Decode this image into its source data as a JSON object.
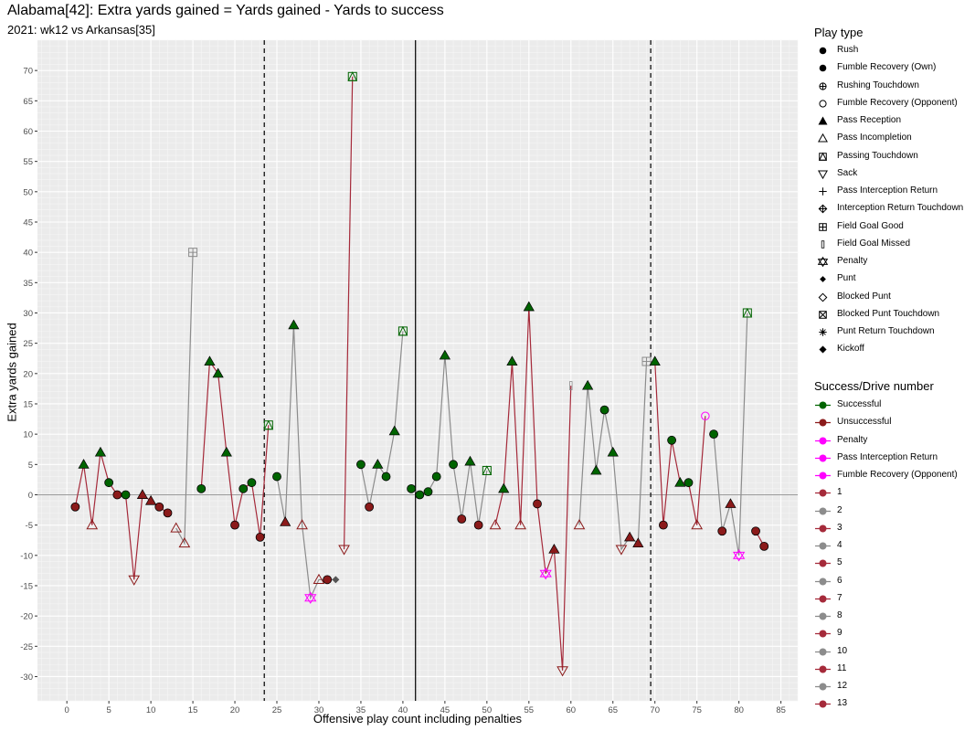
{
  "chart_data": {
    "type": "scatter",
    "title": "Alabama[42]: Extra yards gained = Yards gained - Yards to success",
    "subtitle": "2021: wk12 vs Arkansas[35]",
    "xlabel": "Offensive play count including penalties",
    "ylabel": "Extra yards gained",
    "xlim": [
      -3.5,
      87
    ],
    "ylim": [
      -34,
      75
    ],
    "x_ticks": [
      0,
      5,
      10,
      15,
      20,
      25,
      30,
      35,
      40,
      45,
      50,
      55,
      60,
      65,
      70,
      75,
      80,
      85
    ],
    "y_ticks": [
      -30,
      -25,
      -20,
      -15,
      -10,
      -5,
      0,
      5,
      10,
      15,
      20,
      25,
      30,
      35,
      40,
      45,
      50,
      55,
      60,
      65,
      70
    ],
    "grid": true,
    "vertical_lines": [
      {
        "x": 23.5,
        "style": "dashed"
      },
      {
        "x": 41.5,
        "style": "solid"
      },
      {
        "x": 69.5,
        "style": "dashed"
      }
    ],
    "colors": {
      "successful": "#006400",
      "unsuccessful": "#8b1a1a",
      "penalty": "#ff00ff",
      "drive_odd": "#a52a3a",
      "drive_even": "#8c8c8c"
    },
    "legend": {
      "placement": "right",
      "play_type_title": "Play type",
      "play_types": [
        {
          "label": "Rush",
          "shape": "circle-filled"
        },
        {
          "label": "Fumble Recovery (Own)",
          "shape": "circle-filled"
        },
        {
          "label": "Rushing Touchdown",
          "shape": "circle-plus"
        },
        {
          "label": "Fumble Recovery (Opponent)",
          "shape": "circle-open"
        },
        {
          "label": "Pass Reception",
          "shape": "triangle-filled"
        },
        {
          "label": "Pass Incompletion",
          "shape": "triangle-open"
        },
        {
          "label": "Passing Touchdown",
          "shape": "square-triangle"
        },
        {
          "label": "Sack",
          "shape": "triangle-down-open"
        },
        {
          "label": "Pass Interception Return",
          "shape": "plus"
        },
        {
          "label": "Interception Return Touchdown",
          "shape": "diamond-plus"
        },
        {
          "label": "Field Goal Good",
          "shape": "square-plus"
        },
        {
          "label": "Field Goal Missed",
          "shape": "bar"
        },
        {
          "label": "Penalty",
          "shape": "star-of-david"
        },
        {
          "label": "Punt",
          "shape": "diamond-filled-small"
        },
        {
          "label": "Blocked Punt",
          "shape": "diamond-open"
        },
        {
          "label": "Blocked Punt Touchdown",
          "shape": "square-x"
        },
        {
          "label": "Punt Return Touchdown",
          "shape": "asterisk"
        },
        {
          "label": "Kickoff",
          "shape": "diamond-filled"
        }
      ],
      "success_title": "Success/Drive number",
      "success_items": [
        {
          "label": "Successful",
          "color": "#006400"
        },
        {
          "label": "Unsuccessful",
          "color": "#8b1a1a"
        },
        {
          "label": "Penalty",
          "color": "#ff00ff"
        },
        {
          "label": "Pass Interception Return",
          "color": "#ff00ff"
        },
        {
          "label": "Fumble Recovery (Opponent)",
          "color": "#ff00ff"
        },
        {
          "label": "1",
          "color": "#a52a3a"
        },
        {
          "label": "2",
          "color": "#8c8c8c"
        },
        {
          "label": "3",
          "color": "#a52a3a"
        },
        {
          "label": "4",
          "color": "#8c8c8c"
        },
        {
          "label": "5",
          "color": "#a52a3a"
        },
        {
          "label": "6",
          "color": "#8c8c8c"
        },
        {
          "label": "7",
          "color": "#a52a3a"
        },
        {
          "label": "8",
          "color": "#8c8c8c"
        },
        {
          "label": "9",
          "color": "#a52a3a"
        },
        {
          "label": "10",
          "color": "#8c8c8c"
        },
        {
          "label": "11",
          "color": "#a52a3a"
        },
        {
          "label": "12",
          "color": "#8c8c8c"
        },
        {
          "label": "13",
          "color": "#a52a3a"
        }
      ]
    },
    "drives": [
      {
        "drive": 1,
        "color": "#a52a3a",
        "points": [
          [
            1,
            -2,
            "circle",
            "u"
          ],
          [
            2,
            5,
            "tri",
            "s"
          ],
          [
            3,
            -5,
            "tri-open",
            "u"
          ],
          [
            4,
            7,
            "tri",
            "s"
          ],
          [
            5,
            2,
            "circle",
            "s"
          ],
          [
            6,
            0,
            "circle",
            "u"
          ],
          [
            7,
            0,
            "circle",
            "s"
          ],
          [
            8,
            -14,
            "tri-down",
            "u"
          ],
          [
            9,
            0,
            "tri",
            "u"
          ],
          [
            10,
            -1,
            "tri",
            "u"
          ],
          [
            11,
            -2,
            "circle",
            "u"
          ],
          [
            12,
            -3,
            "circle",
            "u"
          ]
        ]
      },
      {
        "drive": 2,
        "color": "#8c8c8c",
        "points": [
          [
            13,
            -5.5,
            "tri-open",
            "u"
          ],
          [
            14,
            -8,
            "tri-open",
            "u"
          ],
          [
            15,
            40,
            "sq-plus",
            "fg"
          ]
        ]
      },
      {
        "drive": 3,
        "color": "#a52a3a",
        "points": [
          [
            16,
            1,
            "circle",
            "s"
          ],
          [
            17,
            22,
            "tri",
            "s"
          ],
          [
            18,
            20,
            "tri",
            "s"
          ],
          [
            19,
            7,
            "tri",
            "s"
          ],
          [
            20,
            -5,
            "circle",
            "u"
          ],
          [
            21,
            1,
            "circle",
            "s"
          ],
          [
            22,
            2,
            "circle",
            "s"
          ],
          [
            23,
            -7,
            "circle",
            "u"
          ],
          [
            24,
            11.5,
            "sq-tri",
            "s"
          ]
        ]
      },
      {
        "drive": 4,
        "color": "#8c8c8c",
        "points": [
          [
            25,
            3,
            "circle",
            "s"
          ],
          [
            26,
            -4.5,
            "tri",
            "u"
          ],
          [
            27,
            28,
            "tri",
            "s"
          ],
          [
            28,
            -5,
            "tri-open",
            "u"
          ],
          [
            29,
            -17,
            "penalty",
            "p"
          ],
          [
            30,
            -14,
            "tri-open",
            "u"
          ],
          [
            31,
            -14,
            "circle",
            "u"
          ],
          [
            32,
            -14,
            "punt",
            "u"
          ]
        ]
      },
      {
        "drive": 5,
        "color": "#a52a3a",
        "points": [
          [
            33,
            -9,
            "tri-down",
            "u"
          ],
          [
            34,
            69,
            "sq-tri",
            "s"
          ]
        ]
      },
      {
        "drive": 6,
        "color": "#8c8c8c",
        "points": [
          [
            35,
            5,
            "circle",
            "s"
          ],
          [
            36,
            -2,
            "circle",
            "u"
          ],
          [
            37,
            5,
            "tri",
            "s"
          ],
          [
            38,
            3,
            "circle",
            "s"
          ],
          [
            39,
            10.5,
            "tri",
            "s"
          ],
          [
            40,
            27,
            "sq-tri",
            "s"
          ]
        ]
      },
      {
        "drive": 8,
        "color": "#8c8c8c",
        "points": [
          [
            41,
            1,
            "circle",
            "s"
          ],
          [
            42,
            0,
            "circle",
            "s"
          ],
          [
            43,
            0.5,
            "circle",
            "s"
          ],
          [
            44,
            3,
            "circle",
            "s"
          ],
          [
            45,
            23,
            "tri",
            "s"
          ],
          [
            46,
            5,
            "circle",
            "s"
          ],
          [
            47,
            -4,
            "circle",
            "u"
          ],
          [
            48,
            5.5,
            "tri",
            "s"
          ],
          [
            49,
            -5,
            "circle",
            "u"
          ],
          [
            50,
            4,
            "sq-tri",
            "s"
          ]
        ]
      },
      {
        "drive": 9,
        "color": "#a52a3a",
        "points": [
          [
            51,
            -5,
            "tri-open",
            "u"
          ],
          [
            52,
            1,
            "tri",
            "s"
          ],
          [
            53,
            22,
            "tri",
            "s"
          ],
          [
            54,
            -5,
            "tri-open",
            "u"
          ],
          [
            55,
            31,
            "tri",
            "s"
          ],
          [
            56,
            -1.5,
            "circle",
            "u"
          ],
          [
            57,
            -13,
            "penalty",
            "p"
          ],
          [
            58,
            -9,
            "tri",
            "u"
          ],
          [
            59,
            -29,
            "tri-down",
            "u"
          ],
          [
            60,
            18,
            "bar",
            "fg"
          ]
        ]
      },
      {
        "drive": 10,
        "color": "#8c8c8c",
        "points": [
          [
            61,
            -5,
            "tri-open",
            "u"
          ],
          [
            62,
            18,
            "tri",
            "s"
          ],
          [
            63,
            4,
            "tri",
            "s"
          ],
          [
            64,
            14,
            "circle",
            "s"
          ],
          [
            65,
            7,
            "tri",
            "s"
          ],
          [
            66,
            -9,
            "tri-down",
            "u"
          ],
          [
            67,
            -7,
            "tri",
            "u"
          ],
          [
            68,
            -8,
            "tri",
            "u"
          ],
          [
            69,
            22,
            "sq-plus",
            "fg"
          ]
        ]
      },
      {
        "drive": 11,
        "color": "#a52a3a",
        "points": [
          [
            70,
            22,
            "tri",
            "s"
          ],
          [
            71,
            -5,
            "circle",
            "u"
          ],
          [
            72,
            9,
            "circle",
            "s"
          ],
          [
            73,
            2,
            "tri",
            "s"
          ],
          [
            74,
            2,
            "circle",
            "s"
          ],
          [
            75,
            -5,
            "tri-open",
            "u"
          ],
          [
            76,
            13,
            "circle-open",
            "o"
          ]
        ]
      },
      {
        "drive": 12,
        "color": "#8c8c8c",
        "points": [
          [
            77,
            10,
            "circle",
            "s"
          ],
          [
            78,
            -6,
            "circle",
            "u"
          ],
          [
            79,
            -1.5,
            "tri",
            "u"
          ],
          [
            80,
            -10,
            "penalty",
            "p"
          ],
          [
            81,
            30,
            "sq-tri",
            "s"
          ]
        ]
      },
      {
        "drive": 13,
        "color": "#a52a3a",
        "points": [
          [
            82,
            -6,
            "circle",
            "u"
          ],
          [
            83,
            -8.5,
            "circle",
            "u"
          ]
        ]
      }
    ]
  }
}
